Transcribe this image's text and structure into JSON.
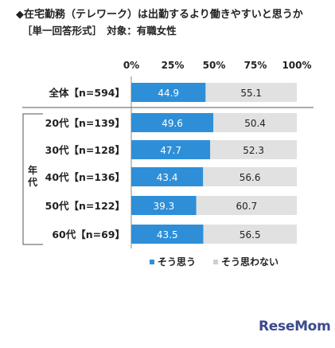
{
  "title": "◆在宅勤務（テレワーク）は出勤するより働きやすいと思うか",
  "subtitle": "［単一回答形式］　対象：有職女性",
  "group_label": "年代",
  "logo_text": "ReseMom",
  "colors": {
    "agree": "#2e8fd8",
    "disagree": "#e1e1e1",
    "agree_text": "#ffffff",
    "disagree_text": "#222222"
  },
  "chart_data": {
    "type": "bar",
    "orientation": "horizontal",
    "stacked": true,
    "categories": [
      "全体【n=594】",
      "20代【n=139】",
      "30代【n=128】",
      "40代【n=136】",
      "50代【n=122】",
      "60代【n=69】"
    ],
    "series": [
      {
        "name": "そう思う",
        "values": [
          44.9,
          49.6,
          47.7,
          43.4,
          39.3,
          43.5
        ]
      },
      {
        "name": "そう思わない",
        "values": [
          55.1,
          50.4,
          52.3,
          56.6,
          60.7,
          56.5
        ]
      }
    ],
    "x_ticks": [
      "0%",
      "25%",
      "50%",
      "75%",
      "100%"
    ],
    "xlim": [
      0,
      100
    ],
    "legend_position": "bottom"
  }
}
